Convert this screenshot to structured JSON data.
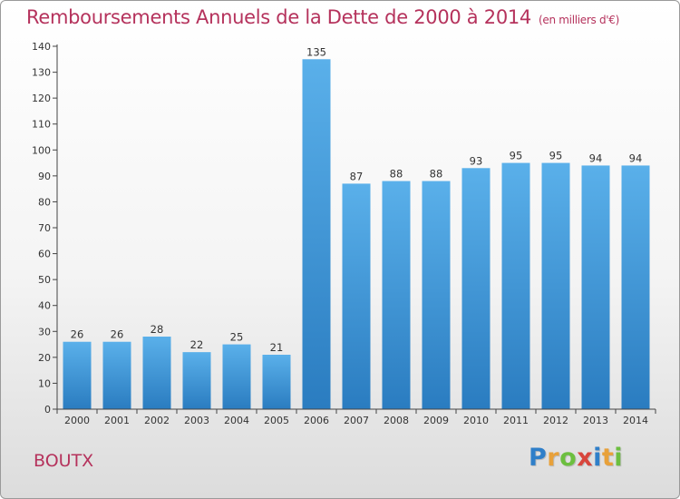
{
  "header": {
    "title": "Remboursements Annuels de la Dette de 2000 à 2014",
    "unit": "(en milliers d'€)"
  },
  "footer": {
    "commune": "BOUTX",
    "logo_letters": [
      "P",
      "r",
      "o",
      "x",
      "i",
      "t",
      "i"
    ]
  },
  "colors": {
    "title": "#b5325c",
    "bar_top": "#5ab0ea",
    "bar_bottom": "#2a7cc0"
  },
  "chart_data": {
    "type": "bar",
    "title": "Remboursements Annuels de la Dette de 2000 à 2014",
    "subtitle": "(en milliers d'€)",
    "xlabel": "",
    "ylabel": "",
    "categories": [
      "2000",
      "2001",
      "2002",
      "2003",
      "2004",
      "2005",
      "2006",
      "2007",
      "2008",
      "2009",
      "2010",
      "2011",
      "2012",
      "2013",
      "2014"
    ],
    "values": [
      26,
      26,
      28,
      22,
      25,
      21,
      135,
      87,
      88,
      88,
      93,
      95,
      95,
      94,
      94
    ],
    "ylim": [
      0,
      140
    ],
    "yticks": [
      0,
      10,
      20,
      30,
      40,
      50,
      60,
      70,
      80,
      90,
      100,
      110,
      120,
      130,
      140
    ],
    "grid": false,
    "legend": "none"
  }
}
